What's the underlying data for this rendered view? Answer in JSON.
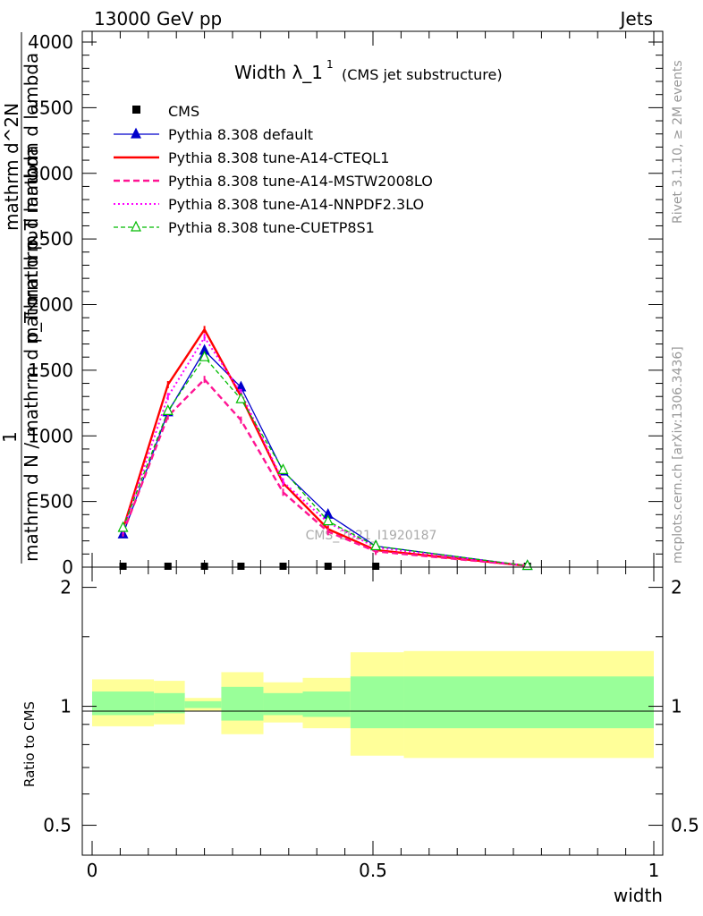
{
  "header": {
    "left": "13000 GeV pp",
    "right": "Jets"
  },
  "side_labels": {
    "rivet": "Rivet 3.1.10, ≥ 2M events",
    "mcplots": "mcplots.cern.ch [arXiv:1306.3436]"
  },
  "watermark": "CMS_2021_I1920187",
  "chart_data": [
    {
      "type": "line",
      "title_main": "Width λ_1",
      "title_sup": "1",
      "title_sub": "(CMS jet substructure)",
      "ylabel_main": "mathrm d N / mathrm d p_T mathrm d lambda",
      "ylabel_frac_top": "mathrm d^2N",
      "ylabel_frac_bottom": "mathrm d p_T mathrm d lambda",
      "ylabel_prefix": "1",
      "xlabel": "width",
      "xlim": [
        0,
        1
      ],
      "ylim": [
        0,
        4000
      ],
      "yticks": [
        0,
        500,
        1000,
        1500,
        2000,
        2500,
        3000,
        3500,
        4000
      ],
      "xticks": [
        0,
        0.5,
        1
      ],
      "x": [
        0.055,
        0.135,
        0.2,
        0.265,
        0.34,
        0.42,
        0.505,
        0.775
      ],
      "series": [
        {
          "name": "CMS",
          "color": "#000000",
          "style": "markers",
          "values": [
            0,
            0,
            0,
            0,
            0,
            0,
            0,
            0
          ]
        },
        {
          "name": "Pythia 8.308 default",
          "color": "#0000cc",
          "style": "solid-triangle",
          "values": [
            250,
            1180,
            1650,
            1370,
            730,
            400,
            160,
            10
          ]
        },
        {
          "name": "Pythia 8.308 tune-A14-CTEQL1",
          "color": "#ff0000",
          "style": "thick",
          "values": [
            290,
            1390,
            1810,
            1300,
            640,
            290,
            130,
            10
          ]
        },
        {
          "name": "Pythia 8.308 tune-A14-MSTW2008LO",
          "color": "#ff1493",
          "style": "dashed",
          "values": [
            260,
            1150,
            1430,
            1120,
            570,
            270,
            120,
            10
          ]
        },
        {
          "name": "Pythia 8.308 tune-A14-NNPDF2.3LO",
          "color": "#ff00ff",
          "style": "dotted",
          "values": [
            280,
            1300,
            1750,
            1330,
            650,
            340,
            150,
            10
          ]
        },
        {
          "name": "Pythia 8.308 tune-CUETP8S1",
          "color": "#00bb00",
          "style": "dashed-open-triangle",
          "values": [
            300,
            1190,
            1600,
            1280,
            740,
            350,
            160,
            10
          ]
        }
      ]
    },
    {
      "type": "area",
      "ylabel": "Ratio to CMS",
      "ylim": [
        0.42,
        2.25
      ],
      "yticks": [
        0.5,
        1,
        2
      ],
      "log_scale": true,
      "bin_edges": [
        0,
        0.11,
        0.165,
        0.23,
        0.305,
        0.375,
        0.46,
        0.555,
        1
      ],
      "yellow_band": [
        [
          0.89,
          1.17
        ],
        [
          0.9,
          1.16
        ],
        [
          0.97,
          1.05
        ],
        [
          0.85,
          1.22
        ],
        [
          0.91,
          1.15
        ],
        [
          0.88,
          1.18
        ],
        [
          0.75,
          1.37
        ],
        [
          0.74,
          1.38
        ]
      ],
      "green_band": [
        [
          0.95,
          1.09
        ],
        [
          0.96,
          1.08
        ],
        [
          0.99,
          1.03
        ],
        [
          0.92,
          1.12
        ],
        [
          0.95,
          1.08
        ],
        [
          0.94,
          1.09
        ],
        [
          0.88,
          1.19
        ],
        [
          0.88,
          1.19
        ]
      ],
      "xticks": [
        0,
        0.5,
        1
      ]
    }
  ]
}
